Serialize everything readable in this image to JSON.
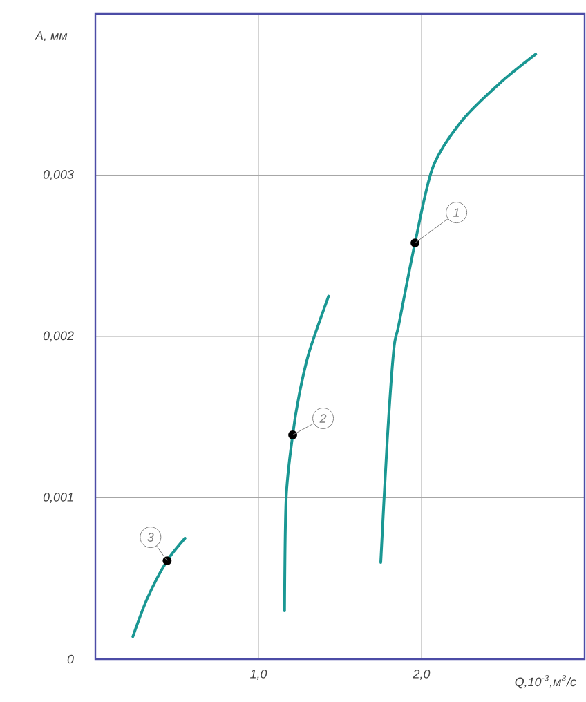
{
  "chart_data": {
    "type": "line",
    "xlabel": "Q,10$^{-3}$,м$^{3}$/с",
    "ylabel": "A, мм",
    "xlim": [
      0,
      3
    ],
    "ylim": [
      0,
      0.004
    ],
    "xticks": [
      {
        "value": 1,
        "label": "1,0"
      },
      {
        "value": 2,
        "label": "2,0"
      }
    ],
    "yticks": [
      {
        "value": 0,
        "label": "0"
      },
      {
        "value": 0.001,
        "label": "0,001"
      },
      {
        "value": 0.002,
        "label": "0,002"
      },
      {
        "value": 0.003,
        "label": "0,003"
      }
    ],
    "grid": true,
    "marker": "none",
    "line_style": "solid",
    "series": [
      {
        "color": "#1a9793",
        "x": [
          1.75,
          1.79,
          1.83,
          1.86,
          1.96,
          2.07,
          2.25,
          2.48,
          2.7
        ],
        "values": [
          0.0006,
          0.00136,
          0.00192,
          0.00207,
          0.00258,
          0.00305,
          0.00334,
          0.00357,
          0.00375
        ]
      },
      {
        "color": "#1a9793",
        "x": [
          1.16,
          1.17,
          1.21,
          1.25,
          1.31,
          1.43
        ],
        "values": [
          0.0003,
          0.001,
          0.00139,
          0.00164,
          0.0019,
          0.00225
        ]
      },
      {
        "color": "#1a9793",
        "x": [
          0.23,
          0.32,
          0.44,
          0.55
        ],
        "values": [
          0.00014,
          0.00038,
          0.00061,
          0.00075
        ]
      }
    ],
    "annotations": [
      {
        "text": "1",
        "x": 1.96,
        "y": 0.00258
      },
      {
        "text": "2",
        "x": 1.21,
        "y": 0.00139
      },
      {
        "text": "3",
        "x": 0.44,
        "y": 0.00061
      }
    ]
  }
}
